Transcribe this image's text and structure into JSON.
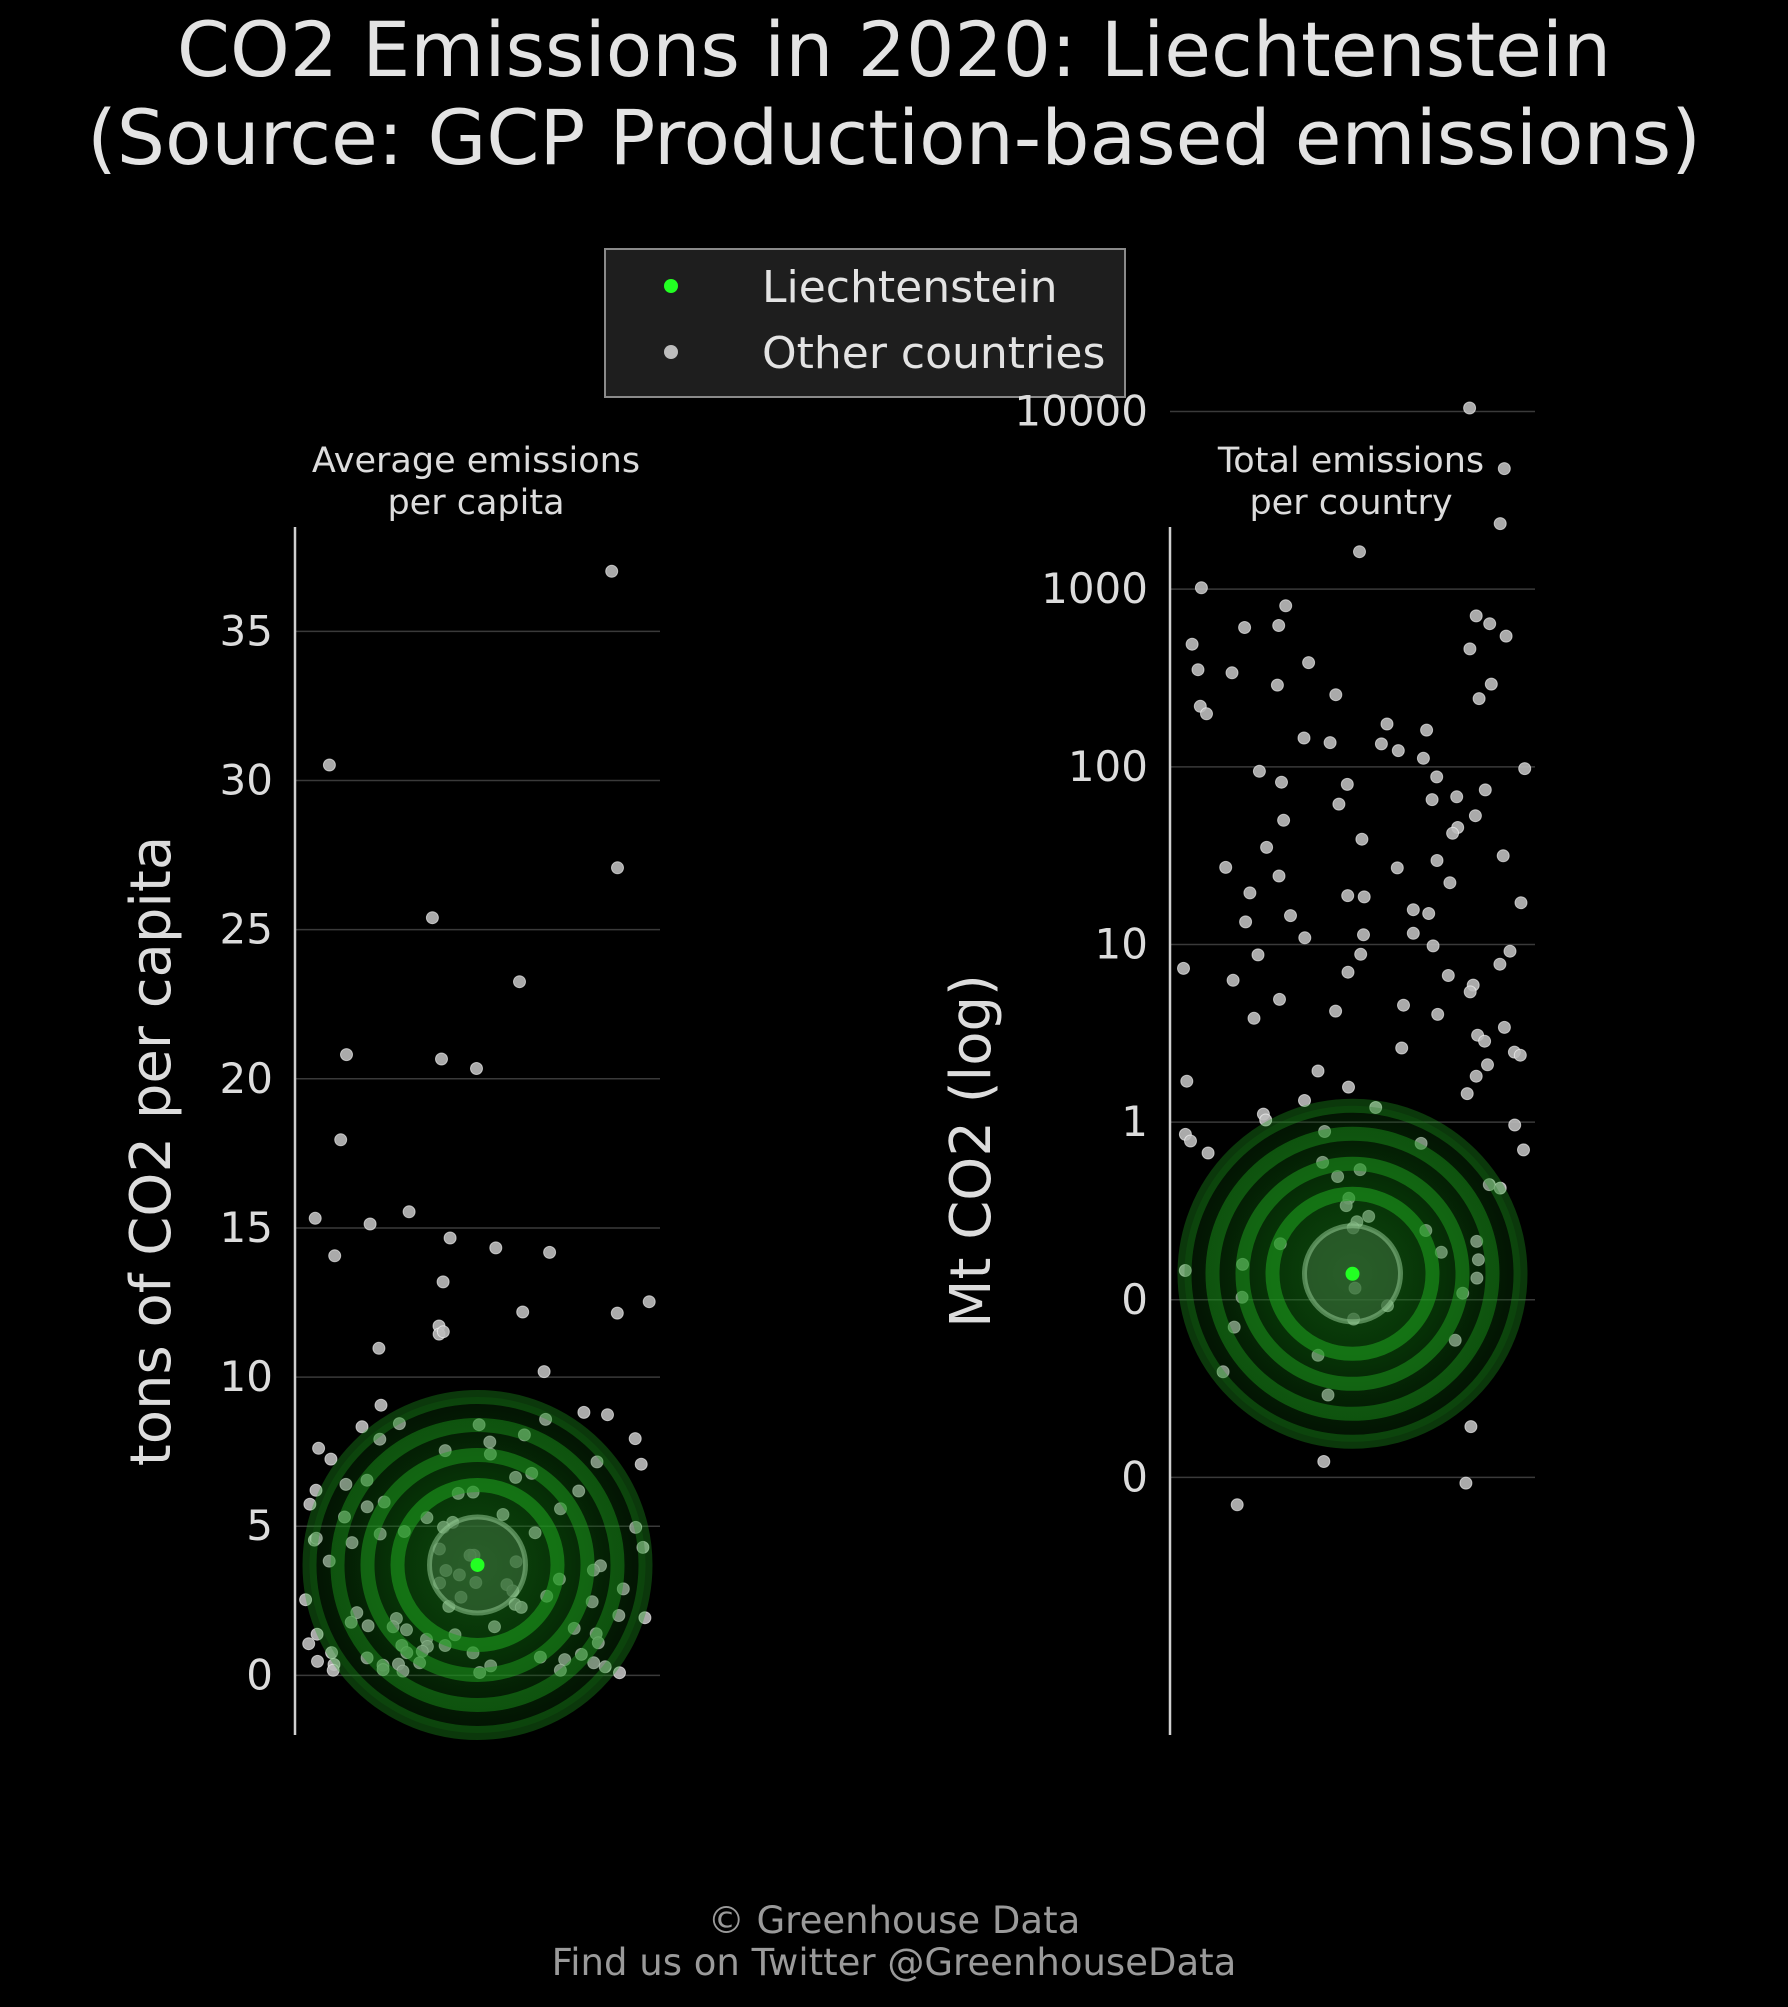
{
  "title": {
    "line1": "CO2 Emissions in 2020: Liechtenstein",
    "line2": "(Source: GCP Production-based emissions)"
  },
  "legend": {
    "items": [
      {
        "label": "Liechtenstein",
        "color": "#22ff22"
      },
      {
        "label": "Other countries",
        "color": "#bdbdbd"
      }
    ]
  },
  "footer": {
    "line1": "© Greenhouse Data",
    "line2": "Find us on Twitter @GreenhouseData"
  },
  "colors": {
    "background": "#000000",
    "highlight": "#22ff22",
    "others": "#bdbdbd",
    "grid": "#3a3a3a",
    "text": "#dcdcdc"
  },
  "chart_data": [
    {
      "type": "scatter",
      "title": "Average emissions per capita",
      "title_lines": [
        "Average emissions",
        "per capita"
      ],
      "ylabel": "tons of CO2 per capita",
      "ylim": [
        -2,
        38.5
      ],
      "yticks": [
        0,
        5,
        10,
        15,
        20,
        25,
        30,
        35
      ],
      "ytick_labels": [
        "0",
        "5",
        "10",
        "15",
        "20",
        "25",
        "30",
        "35"
      ],
      "grid": true,
      "highlight": {
        "name": "Liechtenstein",
        "value": 3.7
      },
      "others_values": [
        37.1,
        30.5,
        27.0,
        25.4,
        23.2,
        20.9,
        20.6,
        20.3,
        18.0,
        15.5,
        15.4,
        15.2,
        14.6,
        14.3,
        14.2,
        14.0,
        13.1,
        12.5,
        12.2,
        12.1,
        11.7,
        11.5,
        11.5,
        10.9,
        10.1,
        9.1,
        8.9,
        8.8,
        8.6,
        8.5,
        8.4,
        8.3,
        8.1,
        8.0,
        7.9,
        7.8,
        7.7,
        7.6,
        7.4,
        7.3,
        7.1,
        7.0,
        6.8,
        6.7,
        6.6,
        6.5,
        6.3,
        6.2,
        6.1,
        6.0,
        5.8,
        5.7,
        5.6,
        5.5,
        5.4,
        5.3,
        5.2,
        5.1,
        5.0,
        5.0,
        4.9,
        4.8,
        4.7,
        4.6,
        4.5,
        4.4,
        4.3,
        4.2,
        4.1,
        4.0,
        3.9,
        3.8,
        3.7,
        3.6,
        3.5,
        3.4,
        3.3,
        3.2,
        3.1,
        3.0,
        2.9,
        2.8,
        2.7,
        2.6,
        2.5,
        2.5,
        2.4,
        2.3,
        2.2,
        2.1,
        2.0,
        2.0,
        1.9,
        1.8,
        1.7,
        1.7,
        1.6,
        1.5,
        1.5,
        1.4,
        1.3,
        1.3,
        1.2,
        1.1,
        1.1,
        1.0,
        1.0,
        0.9,
        0.9,
        0.8,
        0.8,
        0.7,
        0.7,
        0.6,
        0.6,
        0.5,
        0.5,
        0.5,
        0.4,
        0.4,
        0.4,
        0.3,
        0.3,
        0.3,
        0.2,
        0.2,
        0.2,
        0.1,
        0.1,
        0.1
      ]
    },
    {
      "type": "scatter",
      "title": "Total emissions per country",
      "title_lines": [
        "Total emissions",
        "per country"
      ],
      "ylabel": "Mt CO2 (log)",
      "yscale": "log",
      "ylim_log10": [
        -3.45,
        3.35
      ],
      "yticks": [
        0.01,
        0.1,
        1,
        10,
        100,
        1000,
        10000
      ],
      "ytick_labels": [
        "0",
        "0",
        "1",
        "10",
        "100",
        "1000",
        "10000"
      ],
      "grid": true,
      "highlight": {
        "name": "Liechtenstein",
        "value": 0.14
      },
      "others_values": [
        10700,
        4700,
        2400,
        1600,
        1050,
        780,
        700,
        640,
        620,
        600,
        540,
        480,
        460,
        400,
        360,
        330,
        300,
        280,
        260,
        240,
        220,
        200,
        180,
        160,
        150,
        140,
        130,
        120,
        110,
        100,
        95,
        90,
        85,
        80,
        75,
        70,
        65,
        60,
        55,
        50,
        46,
        42,
        38,
        35,
        32,
        30,
        28,
        26,
        24,
        22,
        20,
        19,
        18,
        17,
        16,
        15,
        14,
        13,
        12,
        11,
        10.5,
        10,
        9.5,
        9,
        8.5,
        8,
        7.5,
        7,
        6.6,
        6.2,
        5.8,
        5.4,
        5.0,
        4.6,
        4.3,
        4.0,
        3.7,
        3.4,
        3.1,
        2.9,
        2.7,
        2.5,
        2.3,
        2.1,
        2.0,
        1.8,
        1.7,
        1.6,
        1.4,
        1.3,
        1.2,
        1.1,
        1.0,
        0.95,
        0.9,
        0.85,
        0.8,
        0.75,
        0.7,
        0.65,
        0.6,
        0.55,
        0.5,
        0.46,
        0.42,
        0.38,
        0.34,
        0.3,
        0.28,
        0.26,
        0.24,
        0.22,
        0.2,
        0.18,
        0.17,
        0.16,
        0.15,
        0.13,
        0.12,
        0.11,
        0.1,
        0.09,
        0.08,
        0.07,
        0.06,
        0.05,
        0.04,
        0.03,
        0.02,
        0.012,
        0.009,
        0.007
      ]
    }
  ]
}
